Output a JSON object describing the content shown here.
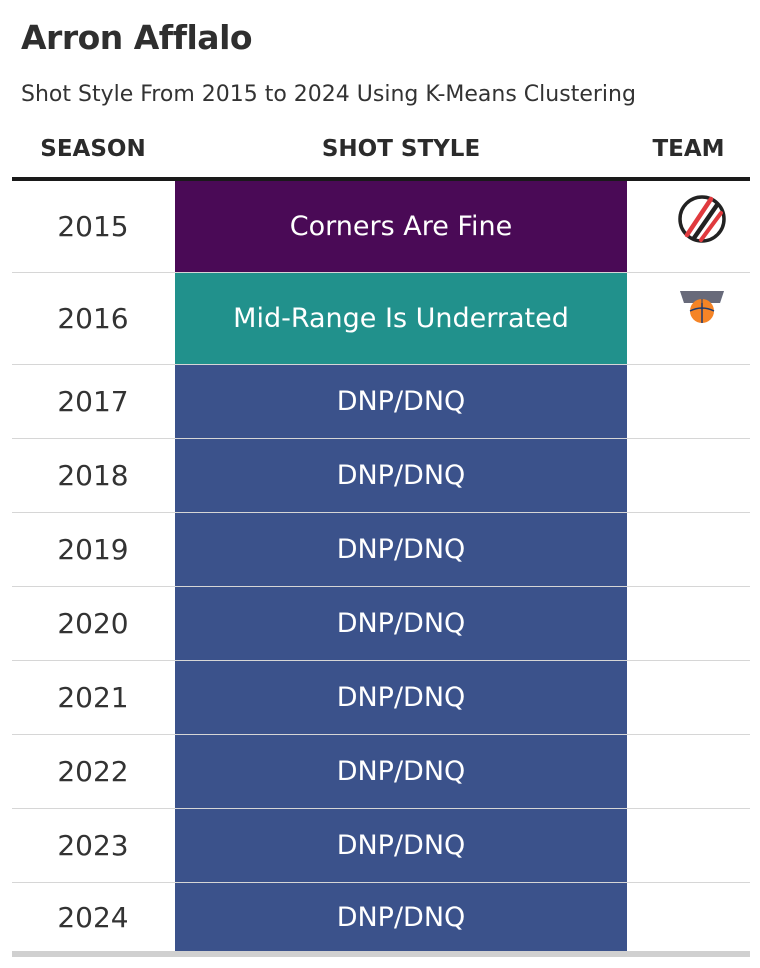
{
  "title": "Arron Afflalo",
  "subtitle": "Shot Style From 2015 to 2024 Using K-Means Clustering",
  "headers": {
    "season": "SEASON",
    "style": "SHOT STYLE",
    "team": "TEAM"
  },
  "colors": {
    "Corners Are Fine": "#4a0a56",
    "Mid-Range Is Underrated": "#21918c",
    "DNP/DNQ": "#3b528b"
  },
  "rows": [
    {
      "season": "2015",
      "style": "Corners Are Fine",
      "team_icon": "trail-blazers-logo"
    },
    {
      "season": "2016",
      "style": "Mid-Range Is Underrated",
      "team_icon": "knicks-logo"
    },
    {
      "season": "2017",
      "style": "DNP/DNQ",
      "team_icon": ""
    },
    {
      "season": "2018",
      "style": "DNP/DNQ",
      "team_icon": ""
    },
    {
      "season": "2019",
      "style": "DNP/DNQ",
      "team_icon": ""
    },
    {
      "season": "2020",
      "style": "DNP/DNQ",
      "team_icon": ""
    },
    {
      "season": "2021",
      "style": "DNP/DNQ",
      "team_icon": ""
    },
    {
      "season": "2022",
      "style": "DNP/DNQ",
      "team_icon": ""
    },
    {
      "season": "2023",
      "style": "DNP/DNQ",
      "team_icon": ""
    },
    {
      "season": "2024",
      "style": "DNP/DNQ",
      "team_icon": ""
    }
  ],
  "chart_data": {
    "type": "table",
    "title": "Arron Afflalo",
    "subtitle": "Shot Style From 2015 to 2024 Using K-Means Clustering",
    "columns": [
      "SEASON",
      "SHOT STYLE",
      "TEAM"
    ],
    "rows": [
      [
        "2015",
        "Corners Are Fine",
        "trail-blazers-logo"
      ],
      [
        "2016",
        "Mid-Range Is Underrated",
        "knicks-logo"
      ],
      [
        "2017",
        "DNP/DNQ",
        ""
      ],
      [
        "2018",
        "DNP/DNQ",
        ""
      ],
      [
        "2019",
        "DNP/DNQ",
        ""
      ],
      [
        "2020",
        "DNP/DNQ",
        ""
      ],
      [
        "2021",
        "DNP/DNQ",
        ""
      ],
      [
        "2022",
        "DNP/DNQ",
        ""
      ],
      [
        "2023",
        "DNP/DNQ",
        ""
      ],
      [
        "2024",
        "DNP/DNQ",
        ""
      ]
    ]
  }
}
